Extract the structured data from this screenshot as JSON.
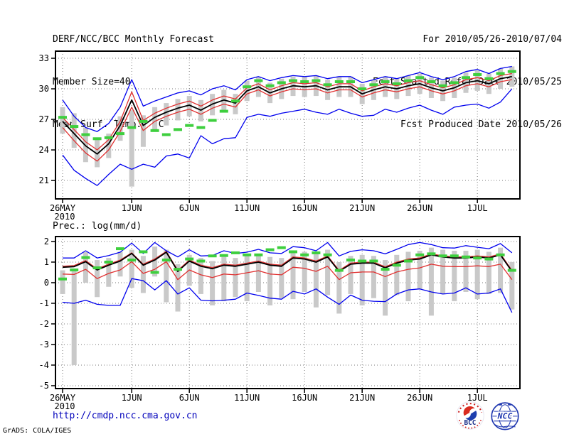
{
  "header": {
    "title": "DERF/NCC/BCC Monthly Forecast",
    "member_size": "Member Size=40",
    "for_range": "For 2010/05/26-2010/07/04",
    "refer_date": "Fcst Started Refer Date 2010/05/25",
    "produced_date": "Fcst Produced Date 2010/05/26"
  },
  "footer": {
    "url": "http://cmdp.ncc.cma.gov.cn",
    "credit": "GrADS: COLA/IGES",
    "bcc_label": "BCC",
    "ncc_label": "NCC"
  },
  "colors": {
    "blue": "#0000ee",
    "red": "#e03030",
    "green": "#3ecf3e",
    "black": "#000000",
    "bar": "#c9c9c9",
    "grid": "#787878",
    "frame": "#000000"
  },
  "chart_data": [
    {
      "type": "line",
      "title": "Mean Surf. Temp.: °C",
      "ylabel": "°C",
      "n_points": 40,
      "grid": true,
      "legend_position": "none",
      "y_ticks": [
        21,
        24,
        27,
        30,
        33
      ],
      "ylim": [
        19.19,
        33.7
      ],
      "x_ticks": [
        {
          "day": 0,
          "label": "26MAY",
          "sub": "2010"
        },
        {
          "day": 6,
          "label": "1JUN"
        },
        {
          "day": 11,
          "label": "6JUN"
        },
        {
          "day": 16,
          "label": "11JUN"
        },
        {
          "day": 21,
          "label": "16JUN"
        },
        {
          "day": 26,
          "label": "21JUN"
        },
        {
          "day": 31,
          "label": "26JUN"
        },
        {
          "day": 36,
          "label": "1JUL"
        }
      ],
      "series": [
        {
          "name": "member-spread",
          "type": "bar",
          "color": "bar",
          "low": [
            25.6,
            24.2,
            22.8,
            22.3,
            23.2,
            24.9,
            20.4,
            24.3,
            25.9,
            26.4,
            26.9,
            27.3,
            26.8,
            27.4,
            27.9,
            27.5,
            28.8,
            29.2,
            28.6,
            29.0,
            29.3,
            29.2,
            29.3,
            28.9,
            29.2,
            29.2,
            28.5,
            28.9,
            29.2,
            29.0,
            29.3,
            29.5,
            29.1,
            28.8,
            29.1,
            29.6,
            29.8,
            29.5,
            30.0,
            30.2
          ],
          "high": [
            28.2,
            27.6,
            26.2,
            25.0,
            25.6,
            27.3,
            27.9,
            27.4,
            28.2,
            28.6,
            29.0,
            29.3,
            28.9,
            29.5,
            29.9,
            29.5,
            30.8,
            31.2,
            30.6,
            31.0,
            31.2,
            31.2,
            31.3,
            30.9,
            31.2,
            31.2,
            30.5,
            30.9,
            31.2,
            31.0,
            31.3,
            31.5,
            31.1,
            30.8,
            31.1,
            31.6,
            31.8,
            31.5,
            32.0,
            32.2
          ]
        },
        {
          "name": "ensemble-max",
          "type": "line",
          "color": "blue",
          "values": [
            28.9,
            27.3,
            26.2,
            25.8,
            26.6,
            28.2,
            30.9,
            28.3,
            28.8,
            29.2,
            29.6,
            29.8,
            29.4,
            30.0,
            30.3,
            29.9,
            30.9,
            31.2,
            30.8,
            31.1,
            31.3,
            31.2,
            31.3,
            31.0,
            31.2,
            31.2,
            30.6,
            30.9,
            31.2,
            31.0,
            31.3,
            31.6,
            31.2,
            30.9,
            31.2,
            31.7,
            31.9,
            31.5,
            32.0,
            32.2
          ]
        },
        {
          "name": "ensemble-min",
          "type": "line",
          "color": "blue",
          "values": [
            23.5,
            22.0,
            21.2,
            20.5,
            21.6,
            22.6,
            22.1,
            22.6,
            22.3,
            23.4,
            23.6,
            23.2,
            25.4,
            24.6,
            25.1,
            25.2,
            27.2,
            27.5,
            27.3,
            27.6,
            27.8,
            28.0,
            27.7,
            27.5,
            28.0,
            27.6,
            27.3,
            27.4,
            28.0,
            27.7,
            28.1,
            28.4,
            27.9,
            27.5,
            28.2,
            28.4,
            28.5,
            28.1,
            28.7,
            30.0
          ]
        },
        {
          "name": "upper-bound",
          "type": "line",
          "color": "red",
          "values": [
            27.2,
            26.0,
            24.8,
            24.0,
            25.0,
            26.8,
            29.7,
            26.9,
            27.6,
            28.1,
            28.5,
            28.8,
            28.3,
            28.9,
            29.3,
            29.0,
            30.1,
            30.5,
            29.9,
            30.3,
            30.6,
            30.5,
            30.6,
            30.2,
            30.5,
            30.5,
            29.8,
            30.2,
            30.5,
            30.3,
            30.6,
            30.8,
            30.4,
            30.1,
            30.4,
            30.9,
            31.1,
            30.8,
            31.3,
            31.5
          ]
        },
        {
          "name": "lower-bound",
          "type": "line",
          "color": "red",
          "values": [
            26.2,
            24.9,
            23.7,
            22.9,
            24.0,
            25.8,
            28.2,
            25.9,
            26.8,
            27.3,
            27.7,
            28.0,
            27.5,
            28.1,
            28.5,
            28.2,
            29.5,
            29.9,
            29.3,
            29.7,
            30.0,
            29.9,
            30.0,
            29.6,
            29.9,
            29.9,
            29.2,
            29.6,
            29.9,
            29.7,
            30.0,
            30.2,
            29.8,
            29.5,
            29.8,
            30.3,
            30.5,
            30.2,
            30.7,
            30.9
          ]
        },
        {
          "name": "ensemble-mean",
          "type": "line",
          "color": "black",
          "values": [
            26.8,
            25.6,
            24.4,
            23.6,
            24.6,
            26.4,
            28.9,
            26.4,
            27.2,
            27.7,
            28.1,
            28.4,
            27.9,
            28.5,
            28.9,
            28.6,
            29.8,
            30.2,
            29.6,
            30.0,
            30.3,
            30.2,
            30.3,
            29.9,
            30.2,
            30.2,
            29.5,
            29.9,
            30.2,
            30.0,
            30.3,
            30.5,
            30.1,
            29.8,
            30.1,
            30.6,
            30.8,
            30.5,
            31.0,
            31.2
          ]
        },
        {
          "name": "climatology",
          "type": "dash",
          "color": "green",
          "values": [
            27.2,
            26.3,
            25.5,
            25.1,
            25.2,
            25.6,
            26.2,
            26.8,
            25.9,
            25.5,
            26.0,
            26.4,
            26.2,
            26.9,
            27.8,
            28.8,
            30.2,
            30.8,
            30.3,
            30.6,
            30.8,
            30.7,
            30.8,
            30.4,
            30.7,
            30.7,
            30.0,
            30.4,
            30.7,
            30.5,
            30.8,
            31.1,
            30.7,
            30.3,
            30.6,
            31.1,
            31.4,
            31.0,
            31.5,
            31.7
          ]
        }
      ]
    },
    {
      "type": "line",
      "title": "Prec.: log(mm/d)",
      "ylabel": "log(mm/d)",
      "n_points": 40,
      "grid": true,
      "legend_position": "none",
      "y_ticks": [
        -5,
        -4,
        -3,
        -2,
        -1,
        0,
        1,
        2
      ],
      "ylim": [
        -5.14,
        2.24
      ],
      "x_ticks": [
        {
          "day": 0,
          "label": "26MAY",
          "sub": "2010"
        },
        {
          "day": 6,
          "label": "1JUN"
        },
        {
          "day": 11,
          "label": "6JUN"
        },
        {
          "day": 16,
          "label": "11JUN"
        },
        {
          "day": 21,
          "label": "16JUN"
        },
        {
          "day": 26,
          "label": "21JUN"
        },
        {
          "day": 31,
          "label": "26JUN"
        },
        {
          "day": 36,
          "label": "1JUL"
        }
      ],
      "series": [
        {
          "name": "member-spread",
          "type": "bar",
          "color": "bar",
          "low": [
            -0.55,
            -4.0,
            0.0,
            -0.7,
            -0.2,
            0.3,
            -0.25,
            -0.5,
            0.3,
            -0.95,
            -1.4,
            -0.15,
            -0.55,
            -1.1,
            -0.9,
            -0.7,
            -0.9,
            -0.45,
            -1.1,
            -0.75,
            -0.8,
            -0.45,
            -1.2,
            -0.6,
            -1.5,
            -0.55,
            -1.1,
            -0.75,
            -1.6,
            -0.6,
            -0.9,
            -0.3,
            -1.6,
            -0.55,
            -0.9,
            -0.45,
            -0.8,
            -0.55,
            -0.5,
            -1.3
          ],
          "high": [
            0.6,
            0.55,
            1.48,
            1.1,
            1.2,
            1.5,
            1.6,
            1.3,
            1.75,
            1.6,
            0.9,
            1.35,
            1.2,
            1.05,
            1.25,
            1.2,
            1.3,
            1.4,
            1.25,
            1.2,
            1.55,
            1.5,
            1.4,
            1.6,
            1.0,
            1.3,
            1.35,
            1.3,
            1.1,
            1.35,
            1.5,
            1.55,
            1.7,
            1.6,
            1.55,
            1.55,
            1.6,
            1.5,
            1.7,
            1.0
          ]
        },
        {
          "name": "ensemble-max",
          "type": "line",
          "color": "blue",
          "values": [
            1.2,
            1.2,
            1.55,
            1.2,
            1.32,
            1.48,
            1.92,
            1.42,
            1.95,
            1.55,
            1.25,
            1.6,
            1.3,
            1.32,
            1.55,
            1.42,
            1.48,
            1.62,
            1.45,
            1.42,
            1.75,
            1.7,
            1.55,
            1.95,
            1.3,
            1.52,
            1.6,
            1.55,
            1.4,
            1.62,
            1.85,
            1.95,
            1.85,
            1.7,
            1.68,
            1.8,
            1.72,
            1.65,
            1.9,
            1.45
          ]
        },
        {
          "name": "ensemble-min",
          "type": "line",
          "color": "blue",
          "values": [
            -0.95,
            -1.0,
            -0.85,
            -1.05,
            -1.1,
            -1.1,
            0.2,
            0.1,
            -0.35,
            0.1,
            -0.55,
            -0.25,
            -0.85,
            -0.88,
            -0.85,
            -0.8,
            -0.5,
            -0.62,
            -0.75,
            -0.8,
            -0.42,
            -0.55,
            -0.3,
            -0.7,
            -1.05,
            -0.6,
            -0.85,
            -0.9,
            -0.92,
            -0.55,
            -0.35,
            -0.3,
            -0.45,
            -0.55,
            -0.5,
            -0.25,
            -0.55,
            -0.5,
            -0.3,
            -1.45
          ]
        },
        {
          "name": "upper-bound",
          "type": "line",
          "color": "red",
          "values": [
            0.8,
            0.83,
            1.07,
            0.67,
            0.9,
            1.1,
            1.45,
            0.9,
            1.15,
            1.52,
            0.6,
            1.1,
            0.85,
            0.73,
            0.9,
            0.85,
            0.95,
            1.05,
            0.9,
            0.85,
            1.25,
            1.2,
            1.05,
            1.3,
            0.6,
            0.95,
            1.0,
            1.0,
            0.77,
            1.0,
            1.15,
            1.2,
            1.4,
            1.3,
            1.25,
            1.25,
            1.3,
            1.25,
            1.4,
            0.6
          ]
        },
        {
          "name": "lower-bound",
          "type": "line",
          "color": "red",
          "values": [
            0.42,
            0.4,
            0.65,
            0.2,
            0.45,
            0.62,
            1.02,
            0.45,
            0.65,
            1.02,
            0.15,
            0.62,
            0.38,
            0.25,
            0.42,
            0.38,
            0.48,
            0.58,
            0.42,
            0.38,
            0.75,
            0.7,
            0.55,
            0.8,
            0.15,
            0.48,
            0.52,
            0.52,
            0.3,
            0.52,
            0.65,
            0.72,
            0.9,
            0.8,
            0.78,
            0.78,
            0.82,
            0.78,
            0.9,
            0.15
          ]
        },
        {
          "name": "ensemble-mean",
          "type": "line",
          "color": "black",
          "values": [
            0.75,
            0.78,
            1.02,
            0.62,
            0.85,
            1.05,
            1.42,
            0.85,
            1.1,
            1.48,
            0.55,
            1.05,
            0.8,
            0.68,
            0.85,
            0.8,
            0.9,
            1.0,
            0.85,
            0.8,
            1.2,
            1.15,
            1.0,
            1.25,
            0.55,
            0.9,
            0.95,
            0.95,
            0.72,
            0.95,
            1.1,
            1.15,
            1.35,
            1.25,
            1.2,
            1.2,
            1.25,
            1.2,
            1.35,
            0.55
          ]
        },
        {
          "name": "climatology",
          "type": "dash",
          "color": "green",
          "values": [
            0.18,
            0.62,
            1.22,
            0.72,
            1.0,
            1.65,
            1.1,
            1.5,
            0.5,
            1.1,
            0.65,
            1.15,
            1.05,
            1.3,
            1.32,
            1.45,
            1.35,
            1.35,
            1.6,
            1.7,
            1.5,
            1.35,
            1.45,
            1.35,
            0.6,
            1.1,
            1.05,
            1.05,
            0.65,
            0.85,
            1.05,
            1.35,
            1.4,
            1.3,
            1.3,
            1.25,
            1.2,
            1.15,
            1.35,
            0.6
          ]
        }
      ]
    }
  ]
}
